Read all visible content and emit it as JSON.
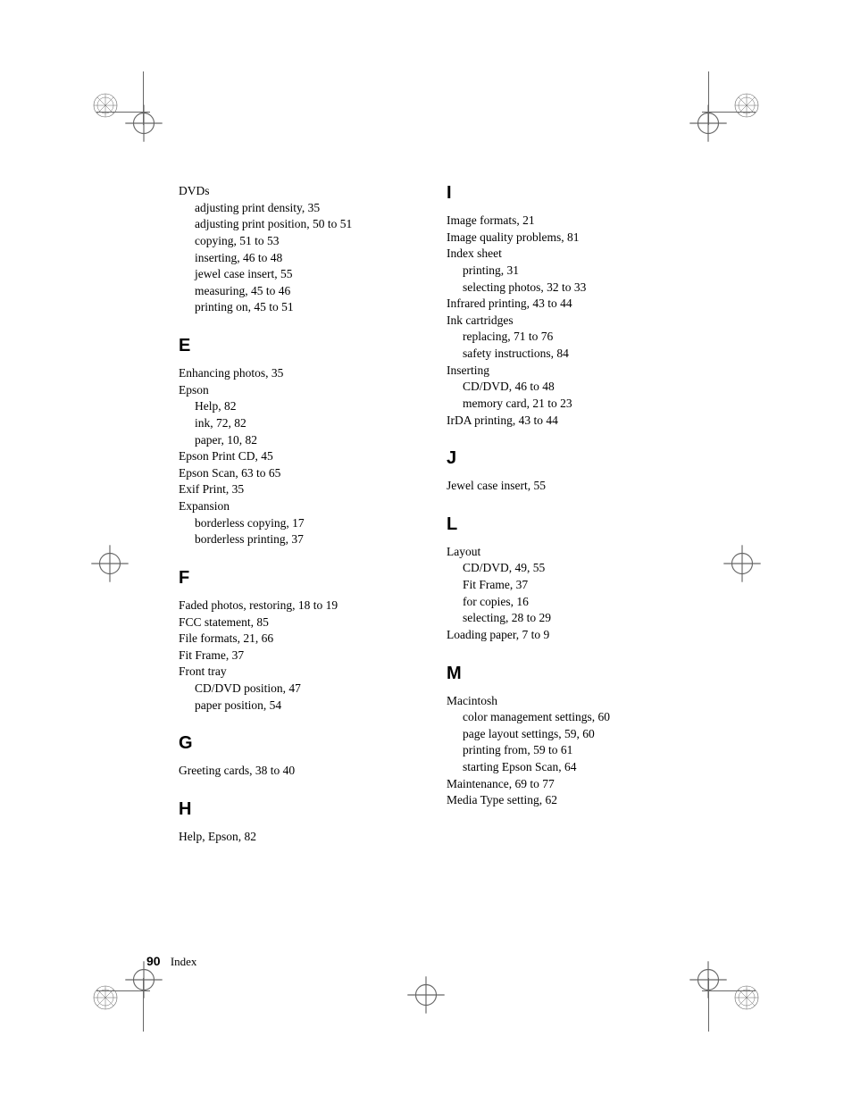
{
  "footer": {
    "page_number": "90",
    "label": "Index"
  },
  "marks": {
    "stroke": "#666666"
  },
  "left_column": [
    {
      "type": "top",
      "text": "DVDs"
    },
    {
      "type": "sub",
      "text": "adjusting print density, 35"
    },
    {
      "type": "sub",
      "text": "adjusting print position, 50 to 51"
    },
    {
      "type": "sub",
      "text": "copying, 51 to 53"
    },
    {
      "type": "sub",
      "text": "inserting, 46 to 48"
    },
    {
      "type": "sub",
      "text": "jewel case insert, 55"
    },
    {
      "type": "sub",
      "text": "measuring, 45 to 46"
    },
    {
      "type": "sub",
      "text": "printing on, 45 to 51"
    },
    {
      "type": "letter",
      "text": "E"
    },
    {
      "type": "top",
      "text": "Enhancing photos, 35"
    },
    {
      "type": "top",
      "text": "Epson"
    },
    {
      "type": "sub",
      "text": "Help, 82"
    },
    {
      "type": "sub",
      "text": "ink, 72, 82"
    },
    {
      "type": "sub",
      "text": "paper, 10, 82"
    },
    {
      "type": "top",
      "text": "Epson Print CD, 45"
    },
    {
      "type": "top",
      "text": "Epson Scan, 63 to 65"
    },
    {
      "type": "top",
      "text": "Exif Print, 35"
    },
    {
      "type": "top",
      "text": "Expansion"
    },
    {
      "type": "sub",
      "text": "borderless copying, 17"
    },
    {
      "type": "sub",
      "text": "borderless printing, 37"
    },
    {
      "type": "letter",
      "text": "F"
    },
    {
      "type": "top",
      "text": "Faded photos, restoring, 18 to 19"
    },
    {
      "type": "top",
      "text": "FCC statement, 85"
    },
    {
      "type": "top",
      "text": "File formats, 21, 66"
    },
    {
      "type": "top",
      "text": "Fit Frame, 37"
    },
    {
      "type": "top",
      "text": "Front tray"
    },
    {
      "type": "sub",
      "text": "CD/DVD position, 47"
    },
    {
      "type": "sub",
      "text": "paper position, 54"
    },
    {
      "type": "letter",
      "text": "G"
    },
    {
      "type": "top",
      "text": "Greeting cards, 38 to 40"
    },
    {
      "type": "letter",
      "text": "H"
    },
    {
      "type": "top",
      "text": "Help, Epson, 82"
    }
  ],
  "right_column": [
    {
      "type": "letter",
      "text": "I",
      "first": true
    },
    {
      "type": "top",
      "text": "Image formats, 21"
    },
    {
      "type": "top",
      "text": "Image quality problems, 81"
    },
    {
      "type": "top",
      "text": "Index sheet"
    },
    {
      "type": "sub",
      "text": "printing, 31"
    },
    {
      "type": "sub",
      "text": "selecting photos, 32 to 33"
    },
    {
      "type": "top",
      "text": "Infrared printing, 43 to 44"
    },
    {
      "type": "top",
      "text": "Ink cartridges"
    },
    {
      "type": "sub",
      "text": "replacing, 71 to 76"
    },
    {
      "type": "sub",
      "text": "safety instructions, 84"
    },
    {
      "type": "top",
      "text": "Inserting"
    },
    {
      "type": "sub",
      "text": "CD/DVD, 46 to 48"
    },
    {
      "type": "sub",
      "text": "memory card, 21 to 23"
    },
    {
      "type": "top",
      "text": "IrDA printing, 43 to 44"
    },
    {
      "type": "letter",
      "text": "J"
    },
    {
      "type": "top",
      "text": "Jewel case insert, 55"
    },
    {
      "type": "letter",
      "text": "L"
    },
    {
      "type": "top",
      "text": "Layout"
    },
    {
      "type": "sub",
      "text": "CD/DVD, 49, 55"
    },
    {
      "type": "sub",
      "text": "Fit Frame, 37"
    },
    {
      "type": "sub",
      "text": "for copies, 16"
    },
    {
      "type": "sub",
      "text": "selecting, 28 to 29"
    },
    {
      "type": "top",
      "text": "Loading paper, 7 to 9"
    },
    {
      "type": "letter",
      "text": "M"
    },
    {
      "type": "top",
      "text": "Macintosh"
    },
    {
      "type": "sub",
      "text": "color management settings, 60"
    },
    {
      "type": "sub",
      "text": "page layout settings, 59, 60"
    },
    {
      "type": "sub",
      "text": "printing from, 59 to 61"
    },
    {
      "type": "sub",
      "text": "starting Epson Scan, 64"
    },
    {
      "type": "top",
      "text": "Maintenance, 69 to 77"
    },
    {
      "type": "top",
      "text": "Media Type setting, 62"
    }
  ]
}
